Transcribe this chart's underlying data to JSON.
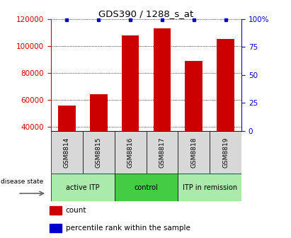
{
  "title": "GDS390 / 1288_s_at",
  "samples": [
    "GSM8814",
    "GSM8815",
    "GSM8816",
    "GSM8817",
    "GSM8818",
    "GSM8819"
  ],
  "counts": [
    56000,
    64000,
    108000,
    113000,
    89000,
    105000
  ],
  "percentile_ranks": [
    99,
    99,
    99,
    99,
    99,
    99
  ],
  "groups": [
    {
      "label": "active ITP",
      "samples": [
        0,
        1
      ],
      "color": "#aaeaaa"
    },
    {
      "label": "control",
      "samples": [
        2,
        3
      ],
      "color": "#44cc44"
    },
    {
      "label": "ITP in remission",
      "samples": [
        4,
        5
      ],
      "color": "#aaeaaa"
    }
  ],
  "ylim_left": [
    37000,
    120000
  ],
  "ylim_right": [
    0,
    100
  ],
  "yticks_left": [
    40000,
    60000,
    80000,
    100000,
    120000
  ],
  "yticks_right": [
    0,
    25,
    50,
    75,
    100
  ],
  "ytick_labels_right": [
    "0",
    "25",
    "50",
    "75",
    "100%"
  ],
  "bar_color": "#CC0000",
  "dot_color": "#0000CC",
  "bar_width": 0.55,
  "sample_bg": "#D8D8D8",
  "disease_state_label": "disease state"
}
